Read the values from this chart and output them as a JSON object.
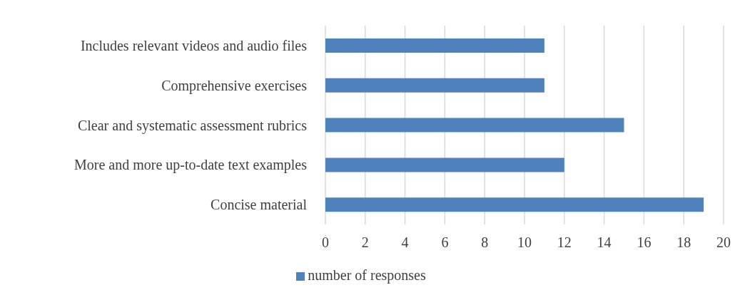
{
  "chart_data": {
    "type": "bar",
    "orientation": "horizontal",
    "categories": [
      "Includes relevant videos and audio files",
      "Comprehensive exercises",
      "Clear and systematic assessment rubrics",
      "More and more up-to-date text examples",
      "Concise material"
    ],
    "series": [
      {
        "name": "number of responses",
        "color": "#4f81bd",
        "values": [
          11,
          11,
          15,
          12,
          19
        ]
      }
    ],
    "xlim": [
      0,
      20
    ],
    "xticks": [
      0,
      2,
      4,
      6,
      8,
      10,
      12,
      14,
      16,
      18,
      20
    ],
    "grid": "x",
    "legend": "bottom"
  }
}
